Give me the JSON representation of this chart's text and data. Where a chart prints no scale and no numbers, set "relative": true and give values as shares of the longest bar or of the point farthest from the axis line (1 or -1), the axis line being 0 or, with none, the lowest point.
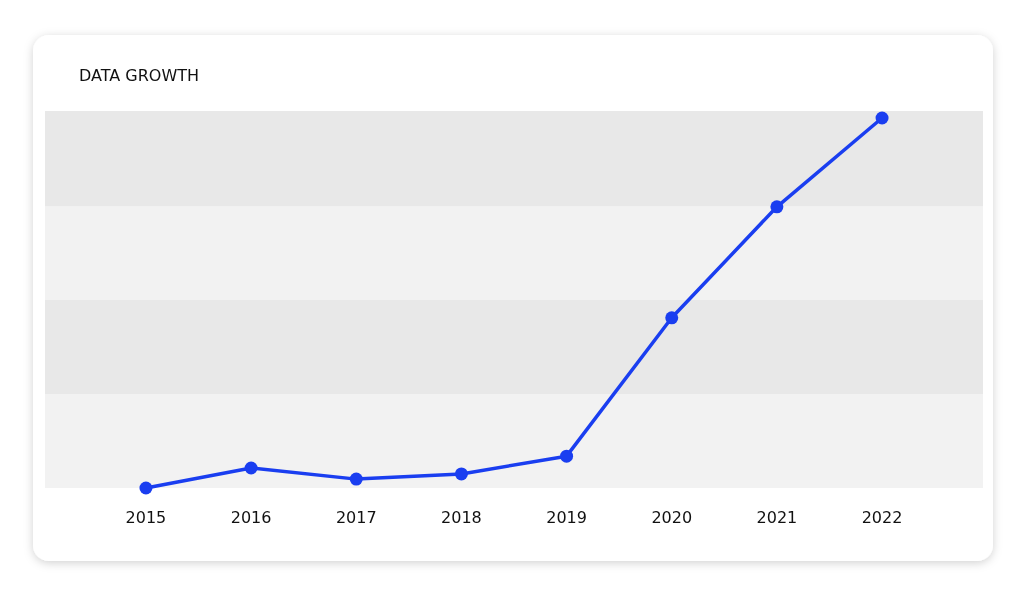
{
  "chart_data": {
    "type": "line",
    "title": "DATA GROWTH",
    "relative": true,
    "categories": [
      "2015",
      "2016",
      "2017",
      "2018",
      "2019",
      "2020",
      "2021",
      "2022"
    ],
    "series": [
      {
        "color": "#1a3ef0",
        "values": [
          0,
          0.054,
          0.024,
          0.038,
          0.086,
          0.46,
          0.76,
          1
        ]
      }
    ],
    "bands": [
      {
        "axis": "y",
        "from": 0,
        "to": 0.254,
        "color": "#f2f2f2"
      },
      {
        "axis": "y",
        "from": 0.254,
        "to": 0.508,
        "color": "#e8e8e8"
      },
      {
        "axis": "y",
        "from": 0.508,
        "to": 0.762,
        "color": "#f2f2f2"
      },
      {
        "axis": "y",
        "from": 0.762,
        "to": 1.019,
        "color": "#e8e8e8"
      }
    ],
    "marker": "circle",
    "line_style": "solid"
  }
}
